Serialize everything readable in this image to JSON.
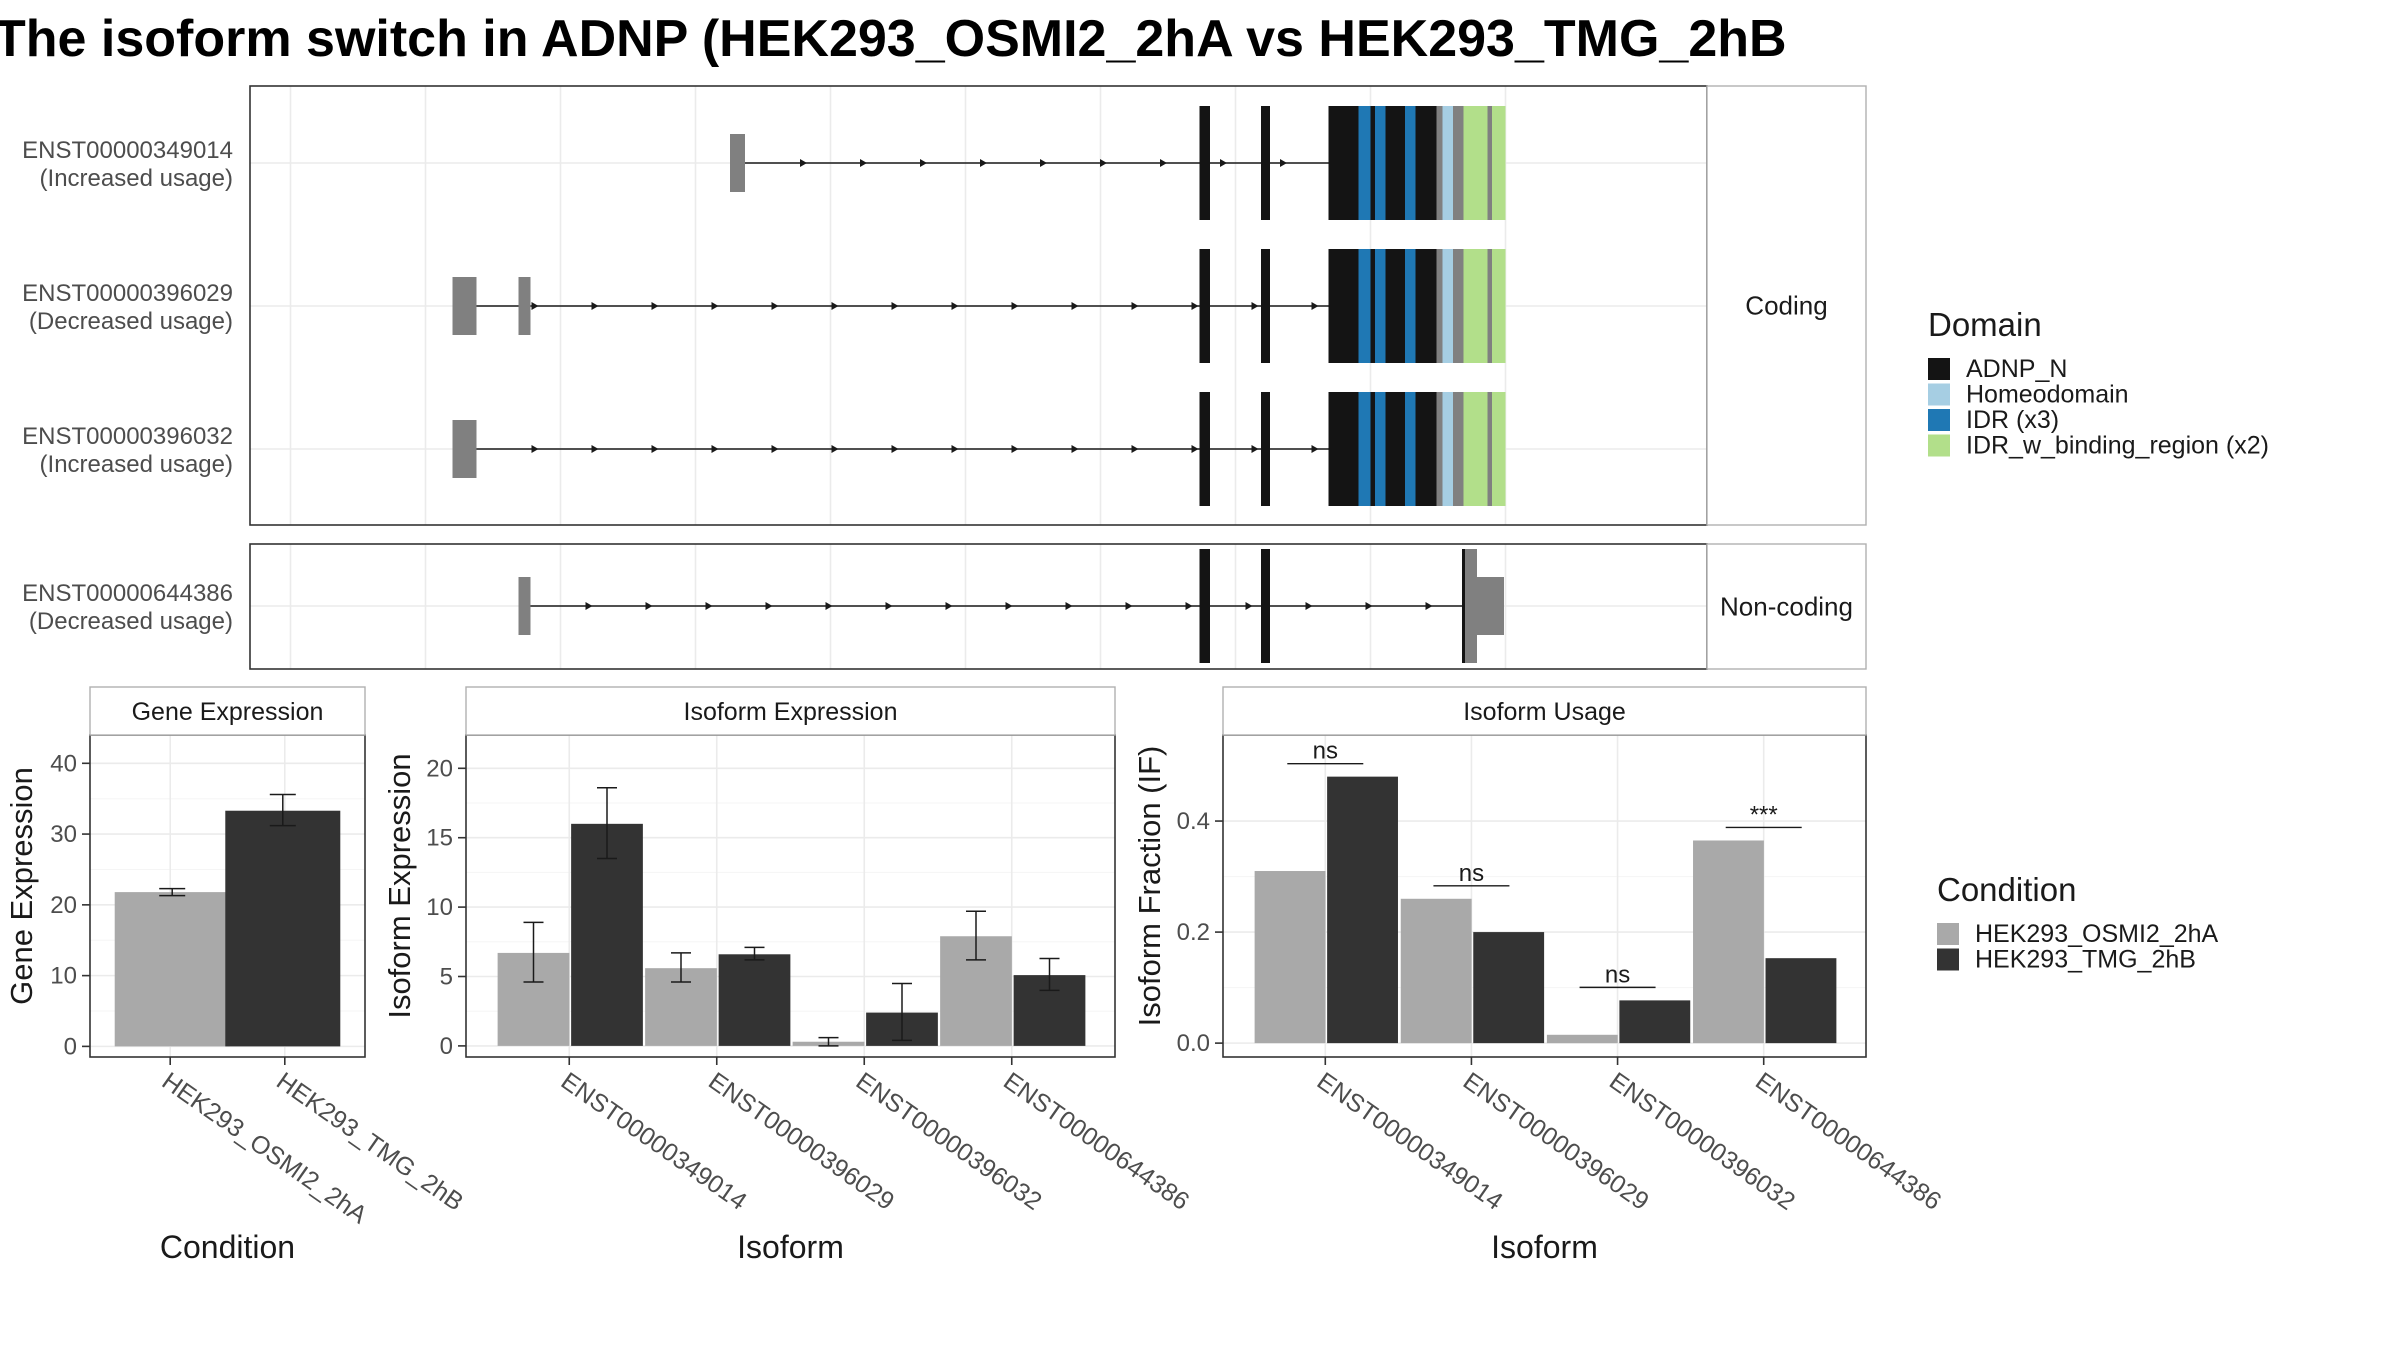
{
  "title": "The isoform switch in ADNP (HEK293_OSMI2_2hA vs HEK293_TMG_2hB",
  "structure": {
    "facets": [
      "Coding",
      "Non-coding"
    ],
    "transcripts": [
      {
        "id": "ENST00000349014",
        "usage": "(Increased usage)",
        "facet": "Coding",
        "utr": [
          [
            320,
            330
          ],
          [
            633,
            634
          ],
          [
            719,
            722
          ],
          [
            756,
            766
          ]
        ],
        "cds": [
          [
            633,
            640
          ],
          [
            674,
            680
          ],
          [
            732,
            756
          ]
        ],
        "intron": [
          330,
          732
        ],
        "arrow_start": 330
      },
      {
        "id": "ENST00000396029",
        "usage": "(Decreased usage)",
        "facet": "Coding",
        "utr": [
          [
            135,
            151
          ],
          [
            179,
            187
          ],
          [
            633,
            634
          ],
          [
            719,
            722
          ],
          [
            756,
            818
          ]
        ],
        "cds": [
          [
            633,
            640
          ],
          [
            674,
            680
          ],
          [
            732,
            756
          ]
        ],
        "intron": [
          151,
          732
        ],
        "arrow_start": 151
      },
      {
        "id": "ENST00000396032",
        "usage": "(Increased usage)",
        "facet": "Coding",
        "utr": [
          [
            135,
            151
          ],
          [
            633,
            634
          ],
          [
            719,
            722
          ],
          [
            756,
            779
          ]
        ],
        "cds": [
          [
            633,
            640
          ],
          [
            674,
            680
          ],
          [
            732,
            756
          ]
        ],
        "intron": [
          151,
          732
        ],
        "arrow_start": 151
      },
      {
        "id": "ENST00000644386",
        "usage": "(Decreased usage)",
        "facet": "Non-coding",
        "utr": [
          [
            179,
            187
          ],
          [
            633,
            634
          ],
          [
            809,
            818
          ]
        ],
        "noncoding_blocks": [
          [
            633,
            640
          ],
          [
            674,
            680
          ]
        ],
        "noncoding_last": [
          818,
          836
        ],
        "intron": [
          187,
          818
        ],
        "arrow_start": 187
      }
    ],
    "domains": [
      {
        "name": "ADNP_N",
        "color": "#141414"
      },
      {
        "name": "Homeodomain",
        "color": "#a6cee3"
      },
      {
        "name": "IDR (x3)",
        "color": "#1f78b4"
      },
      {
        "name": "IDR_w_binding_region (x2)",
        "color": "#b2df8a"
      }
    ],
    "domain_segments": [
      {
        "domain": "ADNP_N",
        "range": [
          719,
          739
        ]
      },
      {
        "domain": "IDR (x3)",
        "range": [
          739,
          747
        ]
      },
      {
        "domain": "ADNP_N",
        "range": [
          747,
          750
        ]
      },
      {
        "domain": "IDR (x3)",
        "range": [
          750,
          757
        ]
      },
      {
        "domain": "ADNP_N",
        "range": [
          757,
          770
        ]
      },
      {
        "domain": "IDR (x3)",
        "range": [
          770,
          777
        ]
      },
      {
        "domain": "ADNP_N",
        "range": [
          777,
          791
        ]
      },
      {
        "domain": "gap",
        "range": [
          791,
          795
        ]
      },
      {
        "domain": "Homeodomain",
        "range": [
          795,
          802
        ]
      },
      {
        "domain": "gap",
        "range": [
          802,
          809
        ]
      },
      {
        "domain": "IDR_w_binding_region (x2)",
        "range": [
          809,
          825
        ]
      },
      {
        "domain": "gap",
        "range": [
          825,
          828
        ]
      },
      {
        "domain": "IDR_w_binding_region (x2)",
        "range": [
          828,
          837
        ]
      }
    ],
    "legend_title": "Domain"
  },
  "chart_data": [
    {
      "type": "bar",
      "title": "Gene Expression",
      "xlabel": "Condition",
      "ylabel": "Gene Expression",
      "categories": [
        "HEK293_OSMI2_2hA",
        "HEK293_TMG_2hB"
      ],
      "values": [
        21.8,
        33.3
      ],
      "errors": [
        [
          21.3,
          22.3
        ],
        [
          31.2,
          35.6
        ]
      ],
      "colors": [
        "#a9a9a9",
        "#333333"
      ],
      "ylim": [
        -1.5,
        44
      ],
      "yticks": [
        0,
        10,
        20,
        30,
        40
      ]
    },
    {
      "type": "bar",
      "title": "Isoform Expression",
      "xlabel": "Isoform",
      "ylabel": "Isoform Expression",
      "categories": [
        "ENST00000349014",
        "ENST00000396029",
        "ENST00000396032",
        "ENST00000644386"
      ],
      "series": [
        {
          "name": "HEK293_OSMI2_2hA",
          "values": [
            6.7,
            5.6,
            0.3,
            7.9
          ],
          "errors": [
            [
              4.6,
              8.9
            ],
            [
              4.6,
              6.7
            ],
            [
              0,
              0.6
            ],
            [
              6.2,
              9.7
            ]
          ]
        },
        {
          "name": "HEK293_TMG_2hB",
          "values": [
            16.0,
            6.6,
            2.4,
            5.1
          ],
          "errors": [
            [
              13.5,
              18.6
            ],
            [
              6.2,
              7.1
            ],
            [
              0.4,
              4.5
            ],
            [
              4.0,
              6.3
            ]
          ]
        }
      ],
      "ylim": [
        -0.8,
        22.4
      ],
      "yticks": [
        0,
        5,
        10,
        15,
        20
      ]
    },
    {
      "type": "bar",
      "title": "Isoform Usage",
      "xlabel": "Isoform",
      "ylabel": "Isoform Fraction (IF)",
      "categories": [
        "ENST00000349014",
        "ENST00000396029",
        "ENST00000396032",
        "ENST00000644386"
      ],
      "series": [
        {
          "name": "HEK293_OSMI2_2hA",
          "values": [
            0.31,
            0.26,
            0.015,
            0.365
          ]
        },
        {
          "name": "HEK293_TMG_2hB",
          "values": [
            0.48,
            0.2,
            0.077,
            0.153
          ]
        }
      ],
      "significance": [
        "ns",
        "ns",
        "ns",
        "***"
      ],
      "ylim": [
        -0.025,
        0.555
      ],
      "yticks": [
        "0.0",
        "0.2",
        "0.4"
      ]
    }
  ],
  "condition_legend": {
    "title": "Condition",
    "items": [
      {
        "name": "HEK293_OSMI2_2hA",
        "color": "#a9a9a9"
      },
      {
        "name": "HEK293_TMG_2hB",
        "color": "#333333"
      }
    ]
  }
}
